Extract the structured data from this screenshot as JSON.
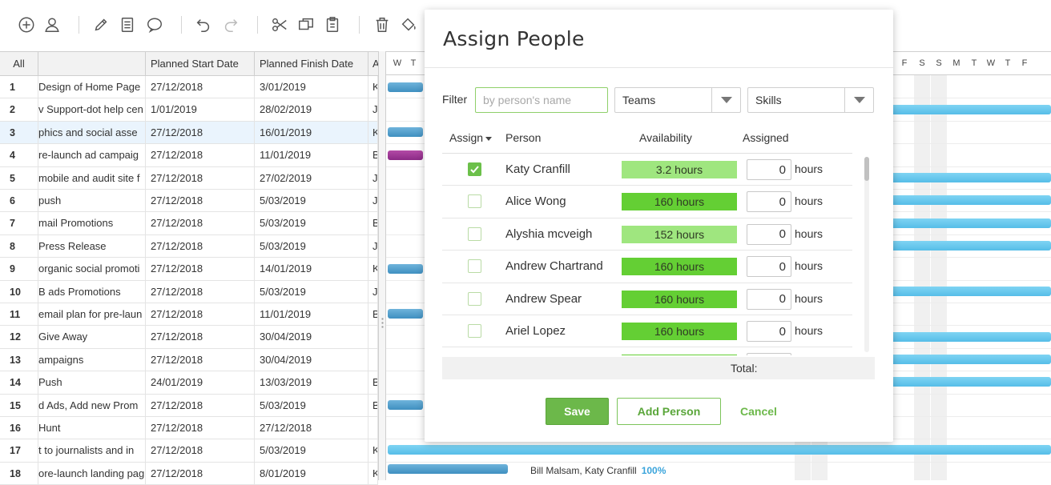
{
  "grid": {
    "headers": {
      "all": "All",
      "name": "",
      "start": "Planned Start Date",
      "finish": "Planned Finish Date",
      "extra": "A"
    },
    "rows": [
      {
        "num": "1",
        "name": "Design of Home Page",
        "start": "27/12/2018",
        "finish": "3/01/2019",
        "extra": "K"
      },
      {
        "num": "2",
        "name": "v Support-dot help cen",
        "start": "1/01/2019",
        "finish": "28/02/2019",
        "extra": "J"
      },
      {
        "num": "3",
        "name": "phics and social asse",
        "start": "27/12/2018",
        "finish": "16/01/2019",
        "extra": "K"
      },
      {
        "num": "4",
        "name": "re-launch ad campaig",
        "start": "27/12/2018",
        "finish": "11/01/2019",
        "extra": "B"
      },
      {
        "num": "5",
        "name": "mobile and audit site f",
        "start": "27/12/2018",
        "finish": "27/02/2019",
        "extra": "J"
      },
      {
        "num": "6",
        "name": "push",
        "start": "27/12/2018",
        "finish": "5/03/2019",
        "extra": "J"
      },
      {
        "num": "7",
        "name": "mail Promotions",
        "start": "27/12/2018",
        "finish": "5/03/2019",
        "extra": "B"
      },
      {
        "num": "8",
        "name": "Press Release",
        "start": "27/12/2018",
        "finish": "5/03/2019",
        "extra": "J"
      },
      {
        "num": "9",
        "name": "organic social promoti",
        "start": "27/12/2018",
        "finish": "14/01/2019",
        "extra": "K"
      },
      {
        "num": "10",
        "name": "B ads Promotions",
        "start": "27/12/2018",
        "finish": "5/03/2019",
        "extra": "J"
      },
      {
        "num": "11",
        "name": "email plan for pre-laun",
        "start": "27/12/2018",
        "finish": "11/01/2019",
        "extra": "B"
      },
      {
        "num": "12",
        "name": "Give Away",
        "start": "27/12/2018",
        "finish": "30/04/2019",
        "extra": ""
      },
      {
        "num": "13",
        "name": "ampaigns",
        "start": "27/12/2018",
        "finish": "30/04/2019",
        "extra": ""
      },
      {
        "num": "14",
        "name": "Push",
        "start": "24/01/2019",
        "finish": "13/03/2019",
        "extra": "B"
      },
      {
        "num": "15",
        "name": "d Ads, Add new Prom",
        "start": "27/12/2018",
        "finish": "5/03/2019",
        "extra": "B"
      },
      {
        "num": "16",
        "name": "Hunt",
        "start": "27/12/2018",
        "finish": "27/12/2018",
        "extra": ""
      },
      {
        "num": "17",
        "name": "t to journalists and in",
        "start": "27/12/2018",
        "finish": "5/03/2019",
        "extra": "K"
      },
      {
        "num": "18",
        "name": "ore-launch landing pag",
        "start": "27/12/2018",
        "finish": "8/01/2019",
        "extra": "K"
      }
    ]
  },
  "gantt": {
    "days_left": [
      "W",
      "T"
    ],
    "days_right": [
      "F",
      "S",
      "S",
      "M",
      "T",
      "W",
      "T",
      "F"
    ],
    "bar_caption": "Bill Malsam, Katy Cranfill",
    "bar_caption_pct": "100%",
    "colors": {
      "bar": "#56bde8",
      "bar_dark": "#3f8fc0",
      "bar_purple": "#8b2a86"
    }
  },
  "dialog": {
    "title": "Assign People",
    "filter_label": "Filter",
    "filter_placeholder": "by person's name",
    "filter_value": "",
    "teams_label": "Teams",
    "skills_label": "Skills",
    "columns": {
      "assign": "Assign",
      "person": "Person",
      "availability": "Availability",
      "assigned": "Assigned"
    },
    "people": [
      {
        "name": "Katy Cranfill",
        "availability": "3.2 hours",
        "level": "light",
        "assigned": "0",
        "unit": "hours",
        "checked": true
      },
      {
        "name": "Alice Wong",
        "availability": "160 hours",
        "level": "full",
        "assigned": "0",
        "unit": "hours",
        "checked": false
      },
      {
        "name": "Alyshia mcveigh",
        "availability": "152 hours",
        "level": "light",
        "assigned": "0",
        "unit": "hours",
        "checked": false
      },
      {
        "name": "Andrew Chartrand",
        "availability": "160 hours",
        "level": "full",
        "assigned": "0",
        "unit": "hours",
        "checked": false
      },
      {
        "name": "Andrew Spear",
        "availability": "160 hours",
        "level": "full",
        "assigned": "0",
        "unit": "hours",
        "checked": false
      },
      {
        "name": "Ariel Lopez",
        "availability": "160 hours",
        "level": "full",
        "assigned": "0",
        "unit": "hours",
        "checked": false
      },
      {
        "name": "",
        "availability": "",
        "level": "full",
        "assigned": "",
        "unit": "",
        "checked": false
      }
    ],
    "total_label": "Total:",
    "save_label": "Save",
    "add_person_label": "Add Person",
    "cancel_label": "Cancel",
    "colors": {
      "accent": "#6cb84a",
      "avail_full": "#64cf34",
      "avail_light": "#9fe67f"
    }
  },
  "toolbar": {
    "icons": [
      "add-circle-icon",
      "user-icon",
      "pencil-icon",
      "notes-icon",
      "comment-icon",
      "undo-icon",
      "redo-icon",
      "cut-icon",
      "copy-icon",
      "paste-icon",
      "trash-icon",
      "paint-bucket-icon"
    ]
  }
}
